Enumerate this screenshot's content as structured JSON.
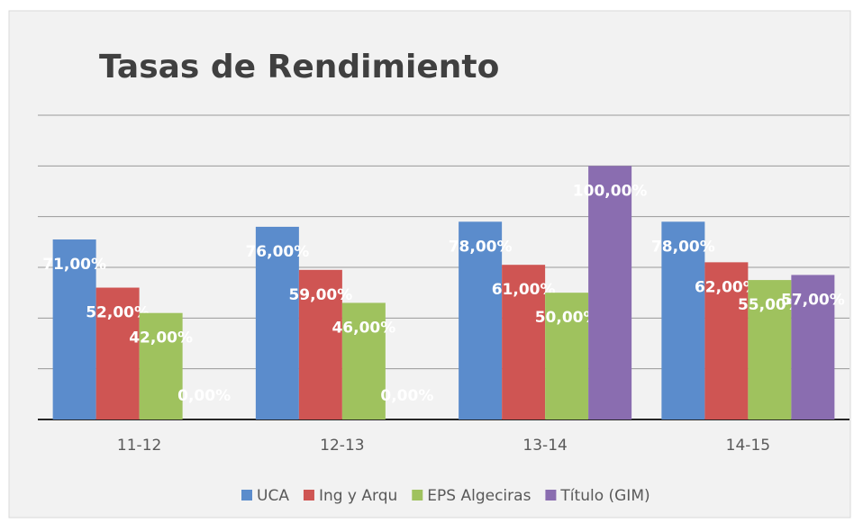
{
  "chart_data": {
    "type": "bar",
    "title": "Tasas de Rendimiento",
    "categories": [
      "11-12",
      "12-13",
      "13-14",
      "14-15"
    ],
    "series": [
      {
        "name": "UCA",
        "color": "#5b8ccc",
        "values": [
          71,
          76,
          78,
          78
        ],
        "value_labels": [
          "71,00%",
          "76,00%",
          "78,00%",
          "78,00%"
        ]
      },
      {
        "name": "Ing y Arqu",
        "color": "#cf5553",
        "values": [
          52,
          59,
          61,
          62
        ],
        "value_labels": [
          "52,00%",
          "59,00%",
          "61,00%",
          "62,00%"
        ]
      },
      {
        "name": "EPS Algeciras",
        "color": "#9fc25e",
        "values": [
          42,
          46,
          50,
          55
        ],
        "value_labels": [
          "42,00%",
          "46,00%",
          "50,00%",
          "55,00%"
        ]
      },
      {
        "name": "Título (GIM)",
        "color": "#8a6db0",
        "values": [
          0,
          0,
          100,
          57
        ],
        "value_labels": [
          "0,00%",
          "0,00%",
          "100,00%",
          "57,00%"
        ]
      }
    ],
    "ylim": [
      0,
      120
    ],
    "yticks": [
      0,
      20,
      40,
      60,
      80,
      100,
      120
    ],
    "grid": true
  }
}
